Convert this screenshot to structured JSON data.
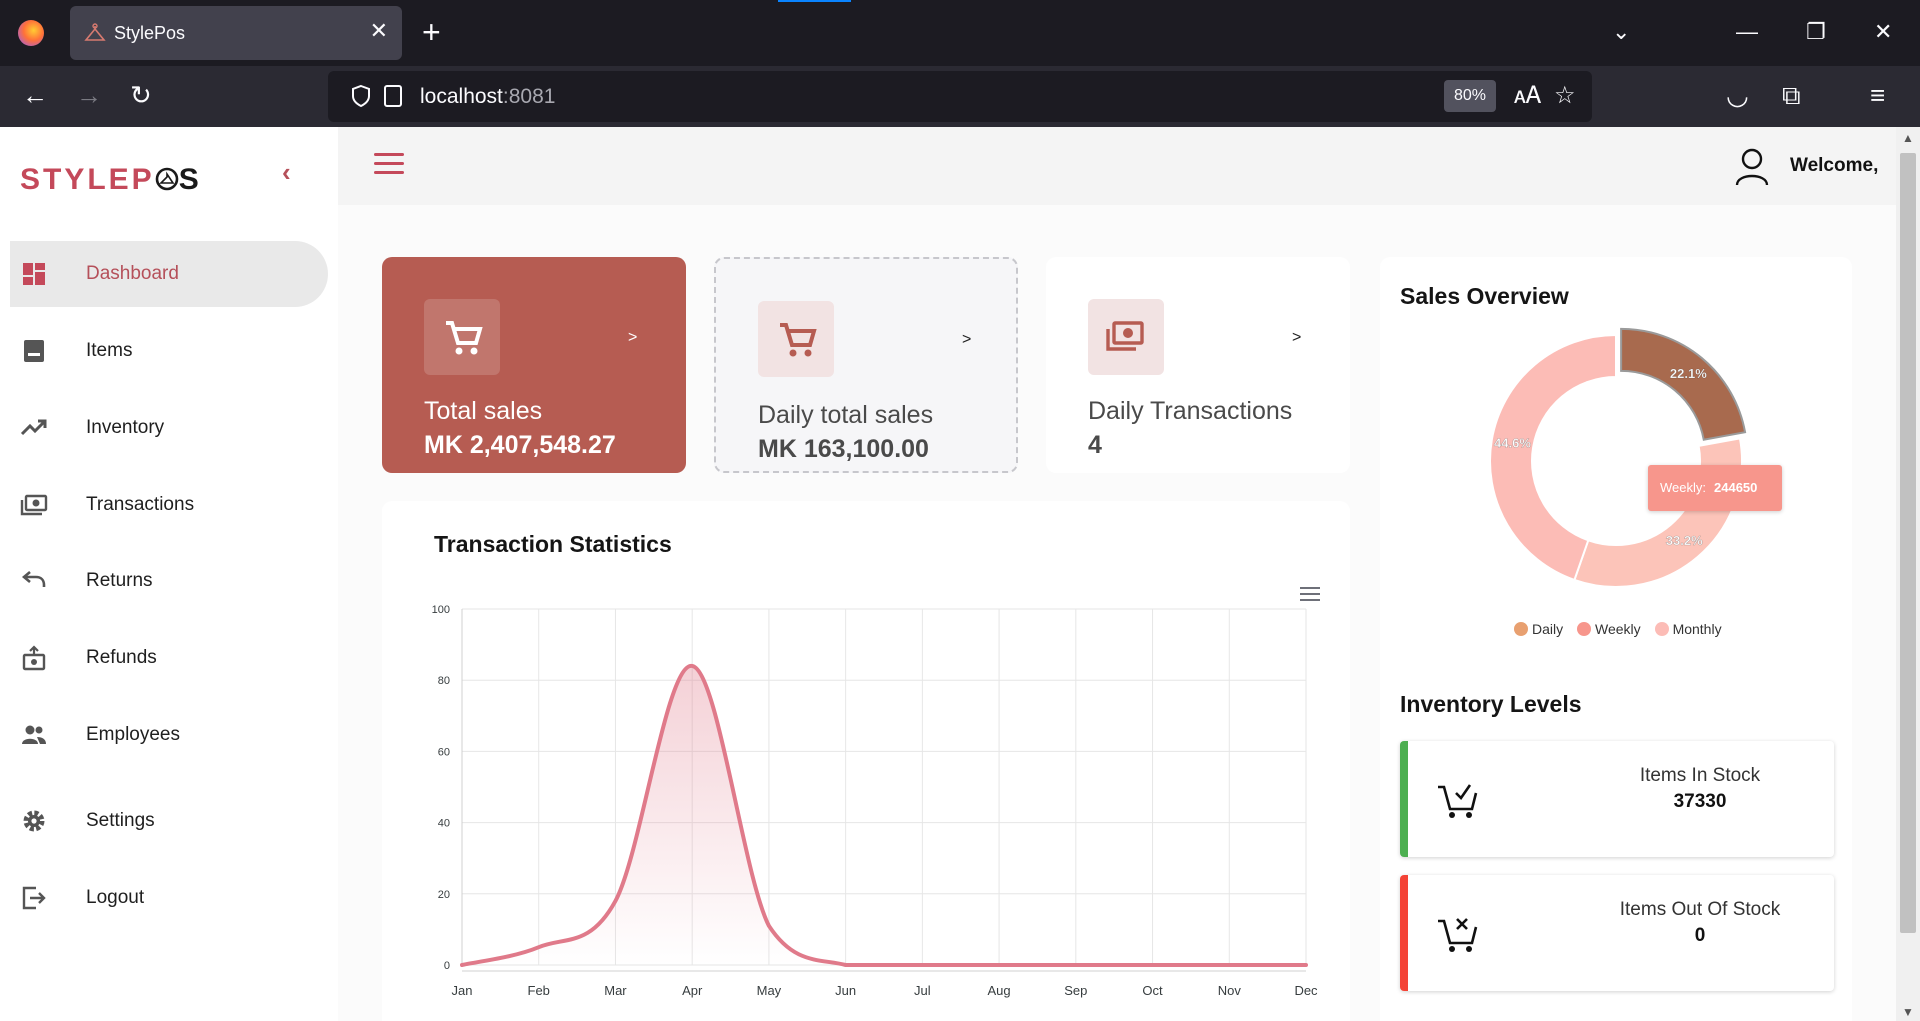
{
  "browser": {
    "tab_title": "StylePos",
    "url_host": "localhost",
    "url_port": ":8081",
    "zoom": "80%"
  },
  "sidebar": {
    "brand_part1": "STYLEP",
    "brand_part2": "S",
    "items": [
      {
        "label": "Dashboard",
        "icon": "dashboard-icon"
      },
      {
        "label": "Items",
        "icon": "items-icon"
      },
      {
        "label": "Inventory",
        "icon": "trending-up-icon"
      },
      {
        "label": "Transactions",
        "icon": "money-icon"
      },
      {
        "label": "Returns",
        "icon": "undo-icon"
      },
      {
        "label": "Refunds",
        "icon": "refund-icon"
      },
      {
        "label": "Employees",
        "icon": "people-icon"
      },
      {
        "label": "Settings",
        "icon": "gear-icon"
      },
      {
        "label": "Logout",
        "icon": "logout-icon"
      }
    ]
  },
  "header": {
    "welcome": "Welcome,"
  },
  "stats": [
    {
      "label": "Total sales",
      "value": "MK 2,407,548.27",
      "arrow": ">"
    },
    {
      "label": "Daily total sales",
      "value": "MK 163,100.00",
      "arrow": ">"
    },
    {
      "label": "Daily Transactions",
      "value": "4",
      "arrow": ">"
    }
  ],
  "colors": {
    "brand": "#c4495a",
    "card_accent": "#b65c52",
    "line": "#e07a8a",
    "daily": "#a86a4e",
    "weekly": "#fcc4b9",
    "monthly": "#fcbcb6",
    "in_stock": "#4caf50",
    "out_stock": "#f44336"
  },
  "transaction_chart": {
    "title": "Transaction Statistics"
  },
  "sales_overview": {
    "title": "Sales Overview",
    "tooltip_label": "Weekly:",
    "tooltip_value": "244650",
    "legend": [
      {
        "label": "Daily",
        "color": "#e8a070"
      },
      {
        "label": "Weekly",
        "color": "#f7968c"
      },
      {
        "label": "Monthly",
        "color": "#fcbcb6"
      }
    ]
  },
  "inventory": {
    "title": "Inventory Levels",
    "in_stock_label": "Items In Stock",
    "in_stock_value": "37330",
    "out_stock_label": "Items Out Of Stock",
    "out_stock_value": "0"
  },
  "chart_data": [
    {
      "type": "line",
      "title": "Transaction Statistics",
      "categories": [
        "Jan",
        "Feb",
        "Mar",
        "Apr",
        "May",
        "Jun",
        "Jul",
        "Aug",
        "Sep",
        "Oct",
        "Nov",
        "Dec"
      ],
      "values": [
        0,
        5,
        18,
        84,
        11,
        0,
        0,
        0,
        0,
        0,
        0,
        0
      ],
      "ylim": [
        0,
        100
      ],
      "yticks": [
        0,
        20,
        40,
        60,
        80,
        100
      ],
      "grid": true,
      "smooth": true
    },
    {
      "type": "pie",
      "title": "Sales Overview",
      "donut": true,
      "labels": [
        "Daily",
        "Weekly",
        "Monthly"
      ],
      "values": [
        22.1,
        33.2,
        44.6
      ],
      "value_labels": [
        "22.1%",
        "33.2%",
        "44.6%"
      ],
      "legend": "bottom"
    }
  ]
}
